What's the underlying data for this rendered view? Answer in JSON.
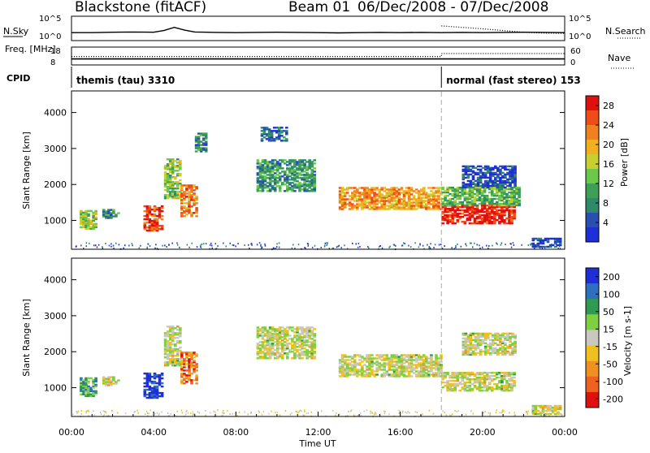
{
  "header": {
    "station": "Blackstone (fitACF)",
    "beam": "Beam 01",
    "date_range": "06/Dec/2008 - 07/Dec/2008"
  },
  "chart_data": [
    {
      "type": "line",
      "panel": "noise",
      "ylabel_left": "N.Sky",
      "ylabel_right": "N.Search",
      "ticks_left": [
        "10^5",
        "10^0"
      ],
      "ticks_right": [
        "10^5",
        "10^0"
      ],
      "series": [
        {
          "name": "N.Sky",
          "style": "solid",
          "x": [
            0,
            1,
            2,
            3,
            4,
            4.5,
            5,
            5.5,
            6,
            7,
            8,
            9,
            10,
            11,
            12,
            13,
            14,
            15,
            16,
            17,
            18,
            19,
            20,
            21,
            22,
            23,
            24
          ],
          "y": [
            0.3,
            0.3,
            0.32,
            0.33,
            0.32,
            0.4,
            0.55,
            0.42,
            0.33,
            0.31,
            0.3,
            0.31,
            0.32,
            0.31,
            0.3,
            0.29,
            0.3,
            0.31,
            0.3,
            0.31,
            0.3,
            0.31,
            0.3,
            0.31,
            0.32,
            0.31,
            0.3
          ]
        },
        {
          "name": "N.Search",
          "style": "dotted",
          "x": [
            18,
            19,
            20,
            21,
            22,
            23,
            24
          ],
          "y": [
            0.62,
            0.55,
            0.48,
            0.4,
            0.32,
            0.28,
            0.27
          ]
        }
      ],
      "x_range": [
        0,
        24
      ]
    },
    {
      "type": "line",
      "panel": "frequency",
      "ylabel_left": "Freq. [MHz]",
      "ylabel_right": "Nave",
      "ticks_left": [
        "18",
        "8"
      ],
      "ticks_right": [
        "60",
        "0"
      ],
      "series": [
        {
          "name": "Freq.",
          "style": "solid",
          "x": [
            0,
            3,
            6,
            9,
            12,
            15,
            18,
            21,
            24
          ],
          "y": [
            11,
            11,
            11,
            11,
            11,
            11,
            11,
            11,
            11
          ]
        },
        {
          "name": "Nave",
          "style": "dotted",
          "x": [
            0,
            18,
            18,
            24
          ],
          "y": [
            28,
            28,
            40,
            40
          ]
        }
      ],
      "x_range": [
        0,
        24
      ]
    },
    {
      "type": "table",
      "panel": "cpid",
      "ylabel": "CPID",
      "segments": [
        {
          "label": "themis (tau) 3310",
          "start": 0,
          "end": 18
        },
        {
          "label": "normal (fast stereo) 153",
          "start": 18,
          "end": 24
        }
      ]
    },
    {
      "type": "heatmap",
      "panel": "power",
      "ylabel": "Slant Range [km]",
      "ylim": [
        200,
        4600
      ],
      "yticks": [
        1000,
        2000,
        3000,
        4000
      ],
      "colorbar_label": "Power [dB]",
      "colorbar_ticks": [
        "4",
        "8",
        "12",
        "16",
        "20",
        "24",
        "28"
      ],
      "colorbar_colors": [
        "#1f2fd8",
        "#2a4fb0",
        "#2f8a6a",
        "#3ea055",
        "#6cc84a",
        "#c8d030",
        "#f0b020",
        "#f08020",
        "#f04c18",
        "#e01010"
      ],
      "regions": [
        {
          "t0": 0.4,
          "t1": 1.2,
          "r0": 750,
          "r1": 1250,
          "level": 0.5
        },
        {
          "t0": 1.5,
          "t1": 2.3,
          "r0": 1050,
          "r1": 1300,
          "level": 0.25
        },
        {
          "t0": 3.5,
          "t1": 4.4,
          "r0": 700,
          "r1": 1400,
          "level": 0.85
        },
        {
          "t0": 4.5,
          "t1": 5.3,
          "r0": 1600,
          "r1": 2700,
          "level": 0.45
        },
        {
          "t0": 5.3,
          "t1": 6.1,
          "r0": 1100,
          "r1": 2000,
          "level": 0.75
        },
        {
          "t0": 6.0,
          "t1": 6.6,
          "r0": 2900,
          "r1": 3400,
          "level": 0.25
        },
        {
          "t0": 9.0,
          "t1": 11.8,
          "r0": 1800,
          "r1": 2700,
          "level": 0.3
        },
        {
          "t0": 9.2,
          "t1": 10.5,
          "r0": 3200,
          "r1": 3600,
          "level": 0.2
        },
        {
          "t0": 13.0,
          "t1": 18.0,
          "r0": 1300,
          "r1": 1900,
          "level": 0.7
        },
        {
          "t0": 18.0,
          "t1": 21.5,
          "r0": 900,
          "r1": 1400,
          "level": 0.95
        },
        {
          "t0": 18.0,
          "t1": 21.8,
          "r0": 1400,
          "r1": 1900,
          "level": 0.4
        },
        {
          "t0": 19.0,
          "t1": 21.6,
          "r0": 1900,
          "r1": 2500,
          "level": 0.1
        },
        {
          "t0": 22.4,
          "t1": 23.8,
          "r0": 250,
          "r1": 500,
          "level": 0.1
        }
      ],
      "x_range": [
        0,
        24
      ]
    },
    {
      "type": "heatmap",
      "panel": "velocity",
      "ylabel": "Slant Range [km]",
      "ylim": [
        200,
        4600
      ],
      "yticks": [
        1000,
        2000,
        3000,
        4000
      ],
      "xticks": [
        "00:00",
        "04:00",
        "08:00",
        "12:00",
        "16:00",
        "20:00",
        "00:00"
      ],
      "xlabel": "Time UT",
      "colorbar_label": "Velocity [m s-1]",
      "colorbar_ticks": [
        "200",
        "100",
        "50",
        "15",
        "-15",
        "-50",
        "-100",
        "-200"
      ],
      "colorbar_colors": [
        "#1f2fd8",
        "#2f6fc0",
        "#2f9a50",
        "#7fd040",
        "#c8c8c0",
        "#f0c020",
        "#f09020",
        "#f06020",
        "#e01010"
      ],
      "regions": [
        {
          "t0": 0.4,
          "t1": 1.2,
          "r0": 750,
          "r1": 1250,
          "level": 0.7
        },
        {
          "t0": 1.5,
          "t1": 2.3,
          "r0": 1050,
          "r1": 1300,
          "level": 0.45
        },
        {
          "t0": 3.5,
          "t1": 4.4,
          "r0": 700,
          "r1": 1400,
          "level": 0.95
        },
        {
          "t0": 4.5,
          "t1": 5.3,
          "r0": 1600,
          "r1": 2700,
          "level": 0.5
        },
        {
          "t0": 5.3,
          "t1": 6.1,
          "r0": 1100,
          "r1": 2000,
          "level": 0.22
        },
        {
          "t0": 9.0,
          "t1": 11.8,
          "r0": 1800,
          "r1": 2700,
          "level": 0.5
        },
        {
          "t0": 13.0,
          "t1": 18.0,
          "r0": 1300,
          "r1": 1900,
          "level": 0.5
        },
        {
          "t0": 18.0,
          "t1": 21.5,
          "r0": 900,
          "r1": 1400,
          "level": 0.5
        },
        {
          "t0": 19.0,
          "t1": 21.6,
          "r0": 1900,
          "r1": 2500,
          "level": 0.5
        },
        {
          "t0": 22.4,
          "t1": 23.8,
          "r0": 250,
          "r1": 500,
          "level": 0.5
        }
      ],
      "x_range": [
        0,
        24
      ]
    }
  ]
}
